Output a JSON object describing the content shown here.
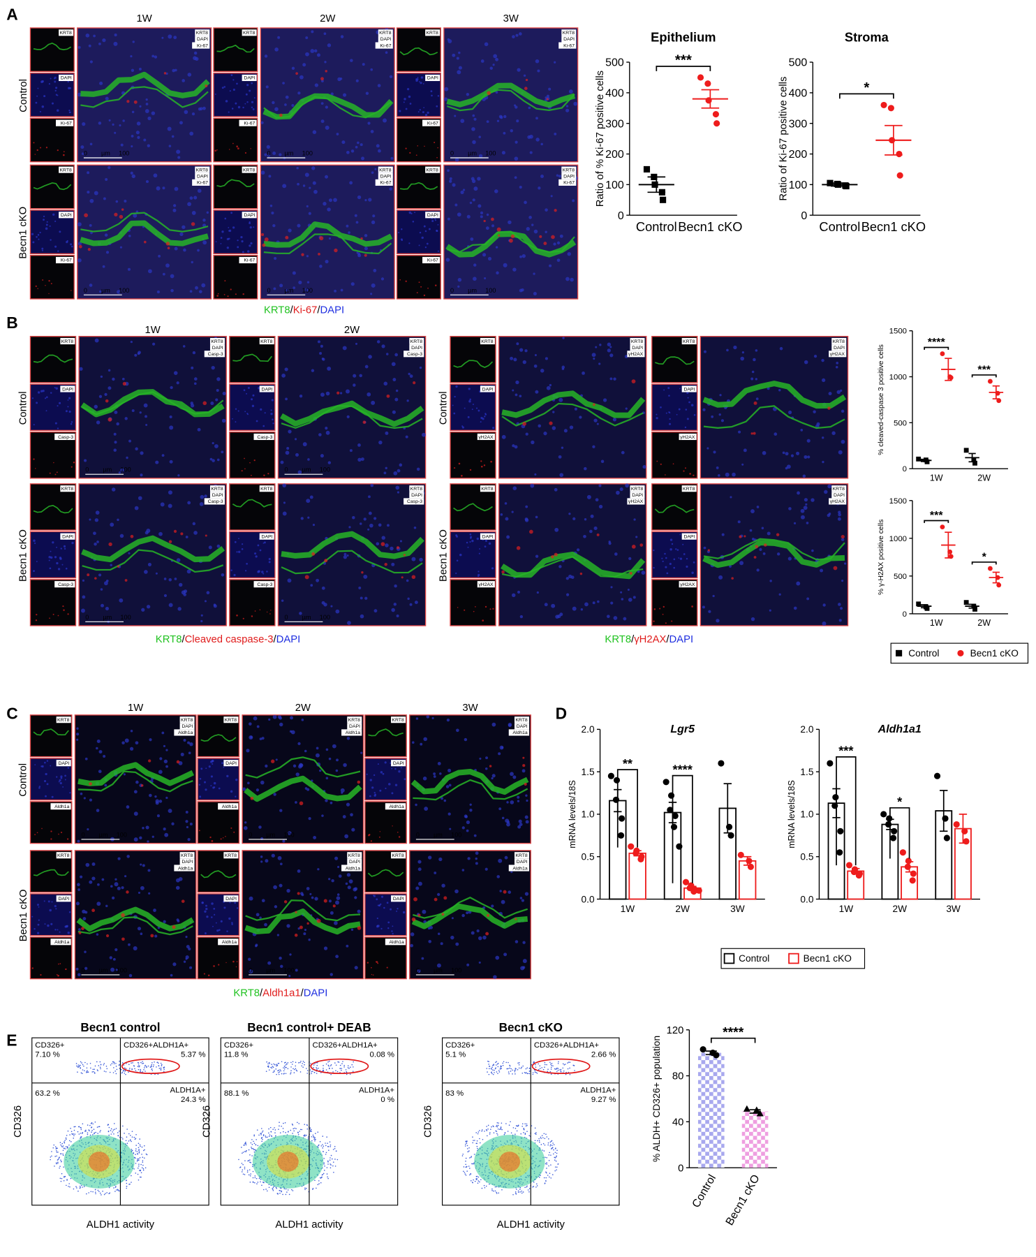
{
  "figure": {
    "panel_labels": [
      "A",
      "B",
      "C",
      "D",
      "E"
    ],
    "micrograph_sets": [
      {
        "timepoints": [
          "1W",
          "2W",
          "3W"
        ],
        "rows": [
          "Control",
          "Becn1 cKO"
        ],
        "channels": [
          "KRT8",
          "DAPI",
          "Ki-67"
        ],
        "channel_colors": [
          "#27b427",
          "#2fa8d8",
          "#e02020"
        ],
        "scale": [
          "0",
          "µm",
          "100"
        ],
        "caption": [
          {
            "text": "KRT8",
            "color": "#1fc21f"
          },
          {
            "text": "/",
            "color": "#000000"
          },
          {
            "text": "Ki-67",
            "color": "#e01b1b"
          },
          {
            "text": "/",
            "color": "#000000"
          },
          {
            "text": "DAPI",
            "color": "#1f2fe0"
          }
        ]
      },
      {
        "timepoints": [
          "1W",
          "2W"
        ],
        "rows": [
          "Control",
          "Becn1 cKO"
        ],
        "channels": [
          "KRT8",
          "DAPI",
          "Casp-3"
        ],
        "channel_colors": [
          "#27b427",
          "#2fa8d8",
          "#e02020"
        ],
        "scale": [
          "0",
          "µm",
          "100"
        ],
        "caption": [
          {
            "text": "KRT8",
            "color": "#1fc21f"
          },
          {
            "text": "/",
            "color": "#000000"
          },
          {
            "text": "Cleaved caspase-3",
            "color": "#e01b1b"
          },
          {
            "text": "/",
            "color": "#000000"
          },
          {
            "text": "DAPI",
            "color": "#1f2fe0"
          }
        ]
      },
      {
        "timepoints": [],
        "rows": [
          "Control",
          "Becn1 cKO"
        ],
        "channels": [
          "KRT8",
          "DAPI",
          "γH2AX"
        ],
        "channel_colors": [
          "#27b427",
          "#2fa8d8",
          "#e02020"
        ],
        "caption": [
          {
            "text": "KRT8",
            "color": "#1fc21f"
          },
          {
            "text": "/",
            "color": "#000000"
          },
          {
            "text": "γH2AX",
            "color": "#e01b1b"
          },
          {
            "text": "/",
            "color": "#000000"
          },
          {
            "text": "DAPI",
            "color": "#1f2fe0"
          }
        ]
      },
      {
        "timepoints": [
          "1W",
          "2W",
          "3W"
        ],
        "rows": [
          "Control",
          "Becn1 cKO"
        ],
        "channels": [
          "KRT8",
          "DAPI",
          "Aldh1a"
        ],
        "channel_colors": [
          "#27b427",
          "#2fa8d8",
          "#e02020"
        ],
        "scale": [
          "0",
          "µm",
          "100"
        ],
        "caption": [
          {
            "text": "KRT8",
            "color": "#1fc21f"
          },
          {
            "text": "/",
            "color": "#000000"
          },
          {
            "text": "Aldh1a1",
            "color": "#e01b1b"
          },
          {
            "text": "/",
            "color": "#000000"
          },
          {
            "text": "DAPI",
            "color": "#1f2fe0"
          }
        ]
      }
    ],
    "flow_plots": [
      {
        "title": "Becn1 control",
        "y_label": "CD326",
        "x_label": "ALDH1 activity",
        "top_left": [
          "CD326+",
          "7.10 %"
        ],
        "top_right": [
          "CD326+ALDH1A+",
          "5.37 %"
        ],
        "bottom_left": [
          "63.2 %"
        ],
        "bottom_right": [
          "ALDH1A+",
          "24.3 %"
        ]
      },
      {
        "title": "Becn1 control+ DEAB",
        "y_label": "CD326",
        "x_label": "ALDH1 activity",
        "top_left": [
          "CD326+",
          "11.8 %"
        ],
        "top_right": [
          "CD326+ALDH1A+",
          "0.08 %"
        ],
        "bottom_left": [
          "88.1 %"
        ],
        "bottom_right": [
          "ALDH1A+",
          "0 %"
        ]
      },
      {
        "title": "Becn1 cKO",
        "y_label": "CD326",
        "x_label": "ALDH1 activity",
        "top_left": [
          "CD326+",
          "5.1 %"
        ],
        "top_right": [
          "CD326+ALDH1A+",
          "2.66 %"
        ],
        "bottom_left": [
          "83 %"
        ],
        "bottom_right": [
          "ALDH1A+",
          "9.27 %"
        ]
      }
    ]
  },
  "chart_data": [
    {
      "type": "dot",
      "title": "Epithelium",
      "y_label": "Ratio of % Ki-67 positive cells",
      "ylim": [
        0,
        500
      ],
      "yticks": [
        0,
        100,
        200,
        300,
        400,
        500
      ],
      "categories": [
        "Control",
        "Becn1 cKO"
      ],
      "values": [
        100,
        380
      ],
      "errors": [
        25,
        30
      ],
      "points": [
        [
          150,
          125,
          100,
          75,
          50
        ],
        [
          450,
          430,
          375,
          330,
          300
        ]
      ],
      "colors": [
        "#000000",
        "#ee1c1c"
      ],
      "markers": [
        "square",
        "circle"
      ],
      "significance": [
        "***"
      ]
    },
    {
      "type": "dot",
      "title": "Stroma",
      "y_label": "Ratio of Ki-67 positive cells",
      "ylim": [
        0,
        500
      ],
      "yticks": [
        0,
        100,
        200,
        300,
        400,
        500
      ],
      "categories": [
        "Control",
        "Becn1 cKO"
      ],
      "values": [
        100,
        245
      ],
      "errors": [
        5,
        48
      ],
      "points": [
        [
          105,
          102,
          100,
          97,
          95
        ],
        [
          360,
          350,
          245,
          200,
          130
        ]
      ],
      "colors": [
        "#000000",
        "#ee1c1c"
      ],
      "markers": [
        "square",
        "circle"
      ],
      "significance": [
        "*"
      ]
    },
    {
      "type": "dot",
      "y_label": "% cleaved-caspase 3 positive cells",
      "ylim": [
        0,
        1500
      ],
      "yticks": [
        0,
        500,
        1000,
        1500
      ],
      "categories": [
        "1W",
        "2W"
      ],
      "series": [
        {
          "color": "#000000",
          "marker": "square",
          "values": [
            90,
            120
          ],
          "errors": [
            12,
            45
          ],
          "points": [
            [
              105,
              95,
              75
            ],
            [
              200,
              100,
              60
            ]
          ]
        },
        {
          "color": "#ee1c1c",
          "marker": "circle",
          "values": [
            1080,
            830
          ],
          "errors": [
            120,
            70
          ],
          "points": [
            [
              1250,
              1000,
              990
            ],
            [
              950,
              820,
              740
            ]
          ]
        }
      ],
      "significance": [
        "****",
        "***"
      ]
    },
    {
      "type": "dot",
      "y_label": "% γ-H2AX positive cells",
      "ylim": [
        0,
        1500
      ],
      "yticks": [
        0,
        500,
        1000,
        1500
      ],
      "categories": [
        "1W",
        "2W"
      ],
      "legend": true,
      "series": [
        {
          "name": "Control",
          "color": "#000000",
          "marker": "square",
          "values": [
            100,
            100
          ],
          "errors": [
            20,
            25
          ],
          "points": [
            [
              130,
              90,
              70
            ],
            [
              150,
              100,
              60
            ]
          ]
        },
        {
          "name": "Becn1 cKO",
          "color": "#ee1c1c",
          "marker": "circle",
          "values": [
            910,
            480
          ],
          "errors": [
            170,
            70
          ],
          "points": [
            [
              1150,
              820,
              760
            ],
            [
              600,
              480,
              380
            ]
          ]
        }
      ],
      "significance": [
        "***",
        "*"
      ]
    },
    {
      "type": "bar",
      "title": "Lgr5",
      "title_italic": true,
      "y_label": "mRNA levels/18S",
      "ylim": [
        0,
        2
      ],
      "yticks": [
        {
          "value": 0,
          "label": "0.0"
        },
        0.5,
        {
          "value": 1,
          "label": "1.0"
        },
        1.5,
        {
          "value": 2,
          "label": "2.0"
        }
      ],
      "categories": [
        "1W",
        "2W",
        "3W"
      ],
      "series": [
        {
          "color": "#000000",
          "values": [
            1.16,
            1.02,
            1.07
          ],
          "errors": [
            0.13,
            0.12,
            0.29
          ],
          "points": [
            [
              1.45,
              1.4,
              1.17,
              0.95,
              0.75
            ],
            [
              1.38,
              1.22,
              1.05,
              0.98,
              0.85,
              0.62
            ],
            [
              1.6,
              0.85,
              0.75
            ]
          ]
        },
        {
          "color": "#ee1c1c",
          "values": [
            0.54,
            0.13,
            0.45
          ],
          "errors": [
            0.03,
            0.02,
            0.05
          ],
          "points": [
            [
              0.62,
              0.57,
              0.54,
              0.5,
              0.47
            ],
            [
              0.2,
              0.16,
              0.13,
              0.11,
              0.09,
              0.1
            ],
            [
              0.52,
              0.45,
              0.38
            ]
          ]
        }
      ],
      "significance": [
        "**",
        "****"
      ]
    },
    {
      "type": "bar",
      "title": "Aldh1a1",
      "title_italic": true,
      "y_label": "mRNA levels/18S",
      "ylim": [
        0,
        2
      ],
      "legend": true,
      "yticks": [
        {
          "value": 0,
          "label": "0.0"
        },
        0.5,
        {
          "value": 1,
          "label": "1.0"
        },
        1.5,
        {
          "value": 2,
          "label": "2.0"
        }
      ],
      "categories": [
        "1W",
        "2W",
        "3W"
      ],
      "series": [
        {
          "name": "Control",
          "color": "#000000",
          "values": [
            1.13,
            0.88,
            1.04
          ],
          "errors": [
            0.17,
            0.06,
            0.24
          ],
          "points": [
            [
              1.6,
              1.2,
              1.1,
              0.8,
              0.55
            ],
            [
              1.0,
              0.95,
              0.88,
              0.8,
              0.72
            ],
            [
              1.45,
              0.95,
              0.72
            ]
          ]
        },
        {
          "name": "Becn1 cKO",
          "color": "#ee1c1c",
          "values": [
            0.33,
            0.38,
            0.83
          ],
          "errors": [
            0.03,
            0.06,
            0.17
          ],
          "points": [
            [
              0.4,
              0.35,
              0.32,
              0.3,
              0.28
            ],
            [
              0.55,
              0.45,
              0.38,
              0.3,
              0.22
            ],
            [
              0.88,
              0.8,
              0.68
            ]
          ]
        }
      ],
      "significance": [
        "***",
        "*"
      ]
    },
    {
      "type": "bar",
      "y_label": "% ALDH+ CD326+ population",
      "ylim": [
        0,
        120
      ],
      "yticks": [
        0,
        40,
        80,
        120
      ],
      "categories": [
        "Control",
        "Becn1 cKO"
      ],
      "values": [
        100,
        49
      ],
      "errors": [
        1.5,
        1.5
      ],
      "points": [
        [
          103,
          100,
          98
        ],
        [
          51,
          50,
          47
        ]
      ],
      "colors": [
        "#a8a8ee",
        "#ee9ee0"
      ],
      "markers": [
        "circle",
        "triangle"
      ],
      "point_color": "#000000",
      "significance": [
        "****"
      ]
    }
  ]
}
